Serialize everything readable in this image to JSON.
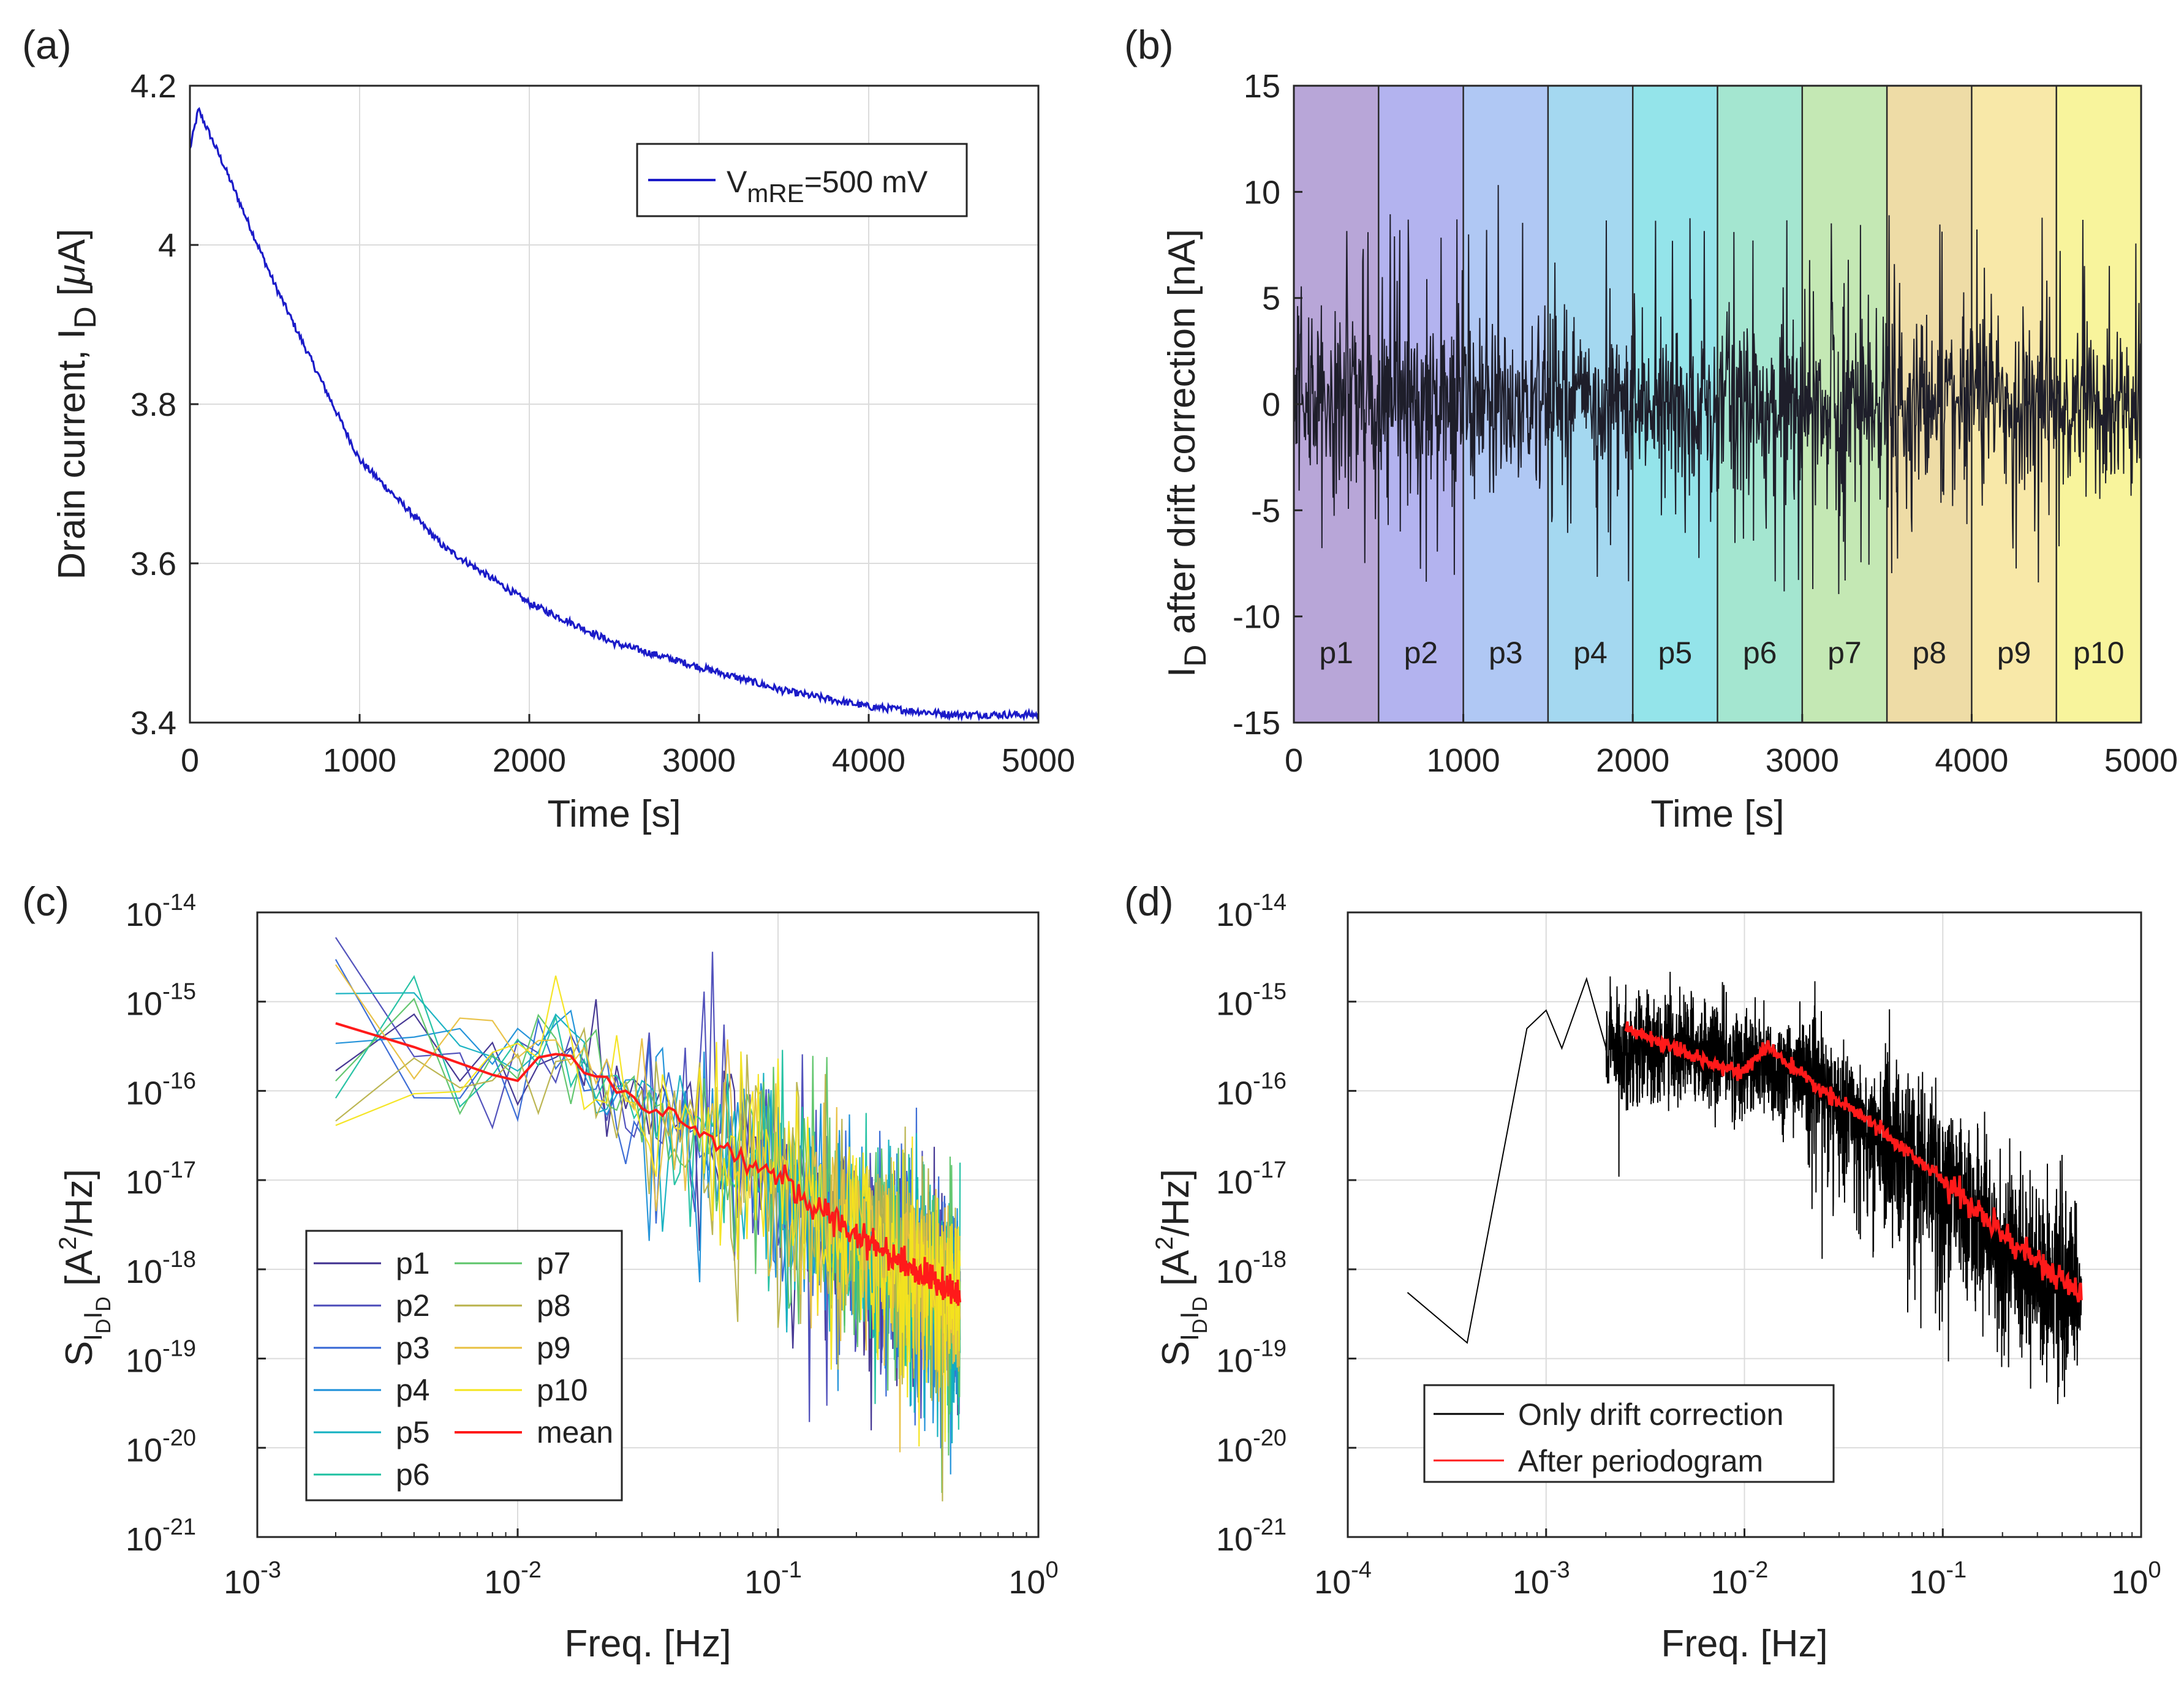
{
  "chart_data": [
    {
      "id": "a",
      "panel_label": "(a)",
      "type": "line",
      "xlabel": "Time [s]",
      "ylabel_parts": [
        "Drain current, I",
        "D",
        " [",
        "μ",
        "A]"
      ],
      "xlim": [
        0,
        5000
      ],
      "ylim": [
        3.4,
        4.2
      ],
      "xticks": [
        0,
        1000,
        2000,
        3000,
        4000,
        5000
      ],
      "xtick_labels": [
        "0",
        "1000",
        "2000",
        "3000",
        "4000",
        "5000"
      ],
      "yticks": [
        3.4,
        3.6,
        3.8,
        4.0,
        4.2
      ],
      "ytick_labels": [
        "3.4",
        "3.6",
        "3.8",
        "4",
        "4.2"
      ],
      "grid": true,
      "legend_position": "top-right",
      "legend_label_parts": [
        "V",
        "mRE",
        "=500 mV"
      ],
      "series": [
        {
          "name": "V_mRE=500 mV",
          "color": "#1b1bc8",
          "model": "exp_decay",
          "x": [
            0,
            50,
            200,
            500,
            1000,
            1500,
            2000,
            2500,
            3000,
            3500,
            4000,
            4500,
            5000
          ],
          "y": [
            4.12,
            4.17,
            4.1,
            3.95,
            3.73,
            3.62,
            3.55,
            3.5,
            3.47,
            3.44,
            3.42,
            3.41,
            3.41
          ]
        }
      ]
    },
    {
      "id": "b",
      "panel_label": "(b)",
      "type": "line",
      "xlabel": "Time [s]",
      "ylabel_parts": [
        "I",
        "D",
        " after drift correction [nA]"
      ],
      "xlim": [
        0,
        5000
      ],
      "ylim": [
        -15,
        15
      ],
      "xticks": [
        0,
        1000,
        2000,
        3000,
        4000,
        5000
      ],
      "xtick_labels": [
        "0",
        "1000",
        "2000",
        "3000",
        "4000",
        "5000"
      ],
      "yticks": [
        -15,
        -10,
        -5,
        0,
        5,
        10,
        15
      ],
      "ytick_labels": [
        "-15",
        "-10",
        "-5",
        "0",
        "5",
        "10",
        "15"
      ],
      "segments": [
        {
          "label": "p1",
          "start": 0,
          "end": 500,
          "color": "#b8a6d8"
        },
        {
          "label": "p2",
          "start": 500,
          "end": 1000,
          "color": "#b3b3ef"
        },
        {
          "label": "p3",
          "start": 1000,
          "end": 1500,
          "color": "#b0c8f4"
        },
        {
          "label": "p4",
          "start": 1500,
          "end": 2000,
          "color": "#a4d8f0"
        },
        {
          "label": "p5",
          "start": 2000,
          "end": 2500,
          "color": "#94e4ea"
        },
        {
          "label": "p6",
          "start": 2500,
          "end": 3000,
          "color": "#a4e6d0"
        },
        {
          "label": "p7",
          "start": 3000,
          "end": 3500,
          "color": "#c4e8b4"
        },
        {
          "label": "p8",
          "start": 3500,
          "end": 4000,
          "color": "#eedca6"
        },
        {
          "label": "p9",
          "start": 4000,
          "end": 4500,
          "color": "#f8e8a8"
        },
        {
          "label": "p10",
          "start": 4500,
          "end": 5000,
          "color": "#f8f49c"
        }
      ],
      "series": [
        {
          "name": "drift corrected noise",
          "color": "#1e1e2a",
          "model": "noise",
          "amplitude_nA": 4,
          "spike_range_nA": [
            -10,
            13
          ],
          "mean_nA": 0
        }
      ]
    },
    {
      "id": "c",
      "panel_label": "(c)",
      "type": "line",
      "xlabel": "Freq. [Hz]",
      "ylabel_parts": [
        "S",
        "I",
        "D",
        "I",
        "D",
        " [A",
        "2",
        "/Hz]"
      ],
      "xscale": "log",
      "yscale": "log",
      "xlim_exp": [
        -3,
        0
      ],
      "ylim_exp": [
        -21,
        -14
      ],
      "xtick_exps": [
        -3,
        -2,
        -1,
        0
      ],
      "xtick_labels": [
        "10",
        "10",
        "10",
        "10"
      ],
      "xtick_sups": [
        "-3",
        "-2",
        "-1",
        "0"
      ],
      "ytick_exps": [
        -21,
        -20,
        -19,
        -18,
        -17,
        -16,
        -15,
        -14
      ],
      "ytick_labels": [
        "10",
        "10",
        "10",
        "10",
        "10",
        "10",
        "10",
        "10"
      ],
      "ytick_sups": [
        "-21",
        "-20",
        "-19",
        "-18",
        "-17",
        "-16",
        "-15",
        "-14"
      ],
      "grid": true,
      "legend_position": "bottom-left",
      "series": [
        {
          "name": "p1",
          "color": "#3d2e8e",
          "start": 2.5e-16
        },
        {
          "name": "p2",
          "color": "#4a4ab8",
          "start": 1e-15
        },
        {
          "name": "p3",
          "color": "#3466d4",
          "start": 1.1e-15
        },
        {
          "name": "p4",
          "color": "#1a8ed8",
          "start": 2.5e-16
        },
        {
          "name": "p5",
          "color": "#12b0c0",
          "start": 8e-16
        },
        {
          "name": "p6",
          "color": "#1cc0a0",
          "start": 6e-17
        },
        {
          "name": "p7",
          "color": "#5cc468",
          "start": 9e-17
        },
        {
          "name": "p8",
          "color": "#b8b24a",
          "start": 1e-16
        },
        {
          "name": "p9",
          "color": "#e8c040",
          "start": 1e-15
        },
        {
          "name": "p10",
          "color": "#f4e41c",
          "start": 3.5e-17
        },
        {
          "name": "mean",
          "color": "#ff1a1a",
          "points": [
            [
              0.002,
              5e-16
            ],
            [
              0.005,
              2.6e-16
            ],
            [
              0.01,
              1.5e-16
            ],
            [
              0.013,
              3.2e-16
            ],
            [
              0.02,
              1.4e-16
            ],
            [
              0.05,
              3.5e-17
            ],
            [
              0.1,
              1e-17
            ],
            [
              0.2,
              2.5e-18
            ],
            [
              0.5,
              5e-19
            ]
          ]
        }
      ],
      "fmin": 0.002,
      "fmax": 0.5
    },
    {
      "id": "d",
      "panel_label": "(d)",
      "type": "line",
      "xlabel": "Freq. [Hz]",
      "ylabel_parts": [
        "S",
        "I",
        "D",
        "I",
        "D",
        " [A",
        "2",
        "/Hz]"
      ],
      "xscale": "log",
      "yscale": "log",
      "xlim_exp": [
        -4,
        0
      ],
      "ylim_exp": [
        -21,
        -14
      ],
      "xtick_exps": [
        -4,
        -3,
        -2,
        -1,
        0
      ],
      "xtick_labels": [
        "10",
        "10",
        "10",
        "10",
        "10"
      ],
      "xtick_sups": [
        "-4",
        "-3",
        "-2",
        "-1",
        "0"
      ],
      "ytick_exps": [
        -21,
        -20,
        -19,
        -18,
        -17,
        -16,
        -15,
        -14
      ],
      "ytick_labels": [
        "10",
        "10",
        "10",
        "10",
        "10",
        "10",
        "10",
        "10"
      ],
      "ytick_sups": [
        "-21",
        "-20",
        "-19",
        "-18",
        "-17",
        "-16",
        "-15",
        "-14"
      ],
      "grid": true,
      "legend_position": "bottom-left",
      "series": [
        {
          "name": "Only drift correction",
          "color": "#000000",
          "points": [
            [
              0.0002,
              5.5e-19
            ],
            [
              0.0004,
              1.5e-19
            ],
            [
              0.0008,
              5e-16
            ],
            [
              0.001,
              8e-16
            ],
            [
              0.0012,
              3e-16
            ],
            [
              0.0016,
              1.8e-15
            ],
            [
              0.002,
              3e-16
            ],
            [
              0.005,
              3e-16
            ],
            [
              0.01,
              2e-16
            ],
            [
              0.02,
              1.5e-16
            ],
            [
              0.05,
              3e-17
            ],
            [
              0.1,
              1e-17
            ],
            [
              0.2,
              2e-18
            ],
            [
              0.5,
              5e-19
            ]
          ]
        },
        {
          "name": "After periodogram",
          "color": "#ff1a1a",
          "points": [
            [
              0.0025,
              5e-16
            ],
            [
              0.005,
              2.6e-16
            ],
            [
              0.01,
              1.6e-16
            ],
            [
              0.013,
              3.2e-16
            ],
            [
              0.02,
              1.4e-16
            ],
            [
              0.05,
              3.5e-17
            ],
            [
              0.1,
              1e-17
            ],
            [
              0.2,
              2.5e-18
            ],
            [
              0.5,
              5e-19
            ]
          ]
        }
      ]
    }
  ]
}
